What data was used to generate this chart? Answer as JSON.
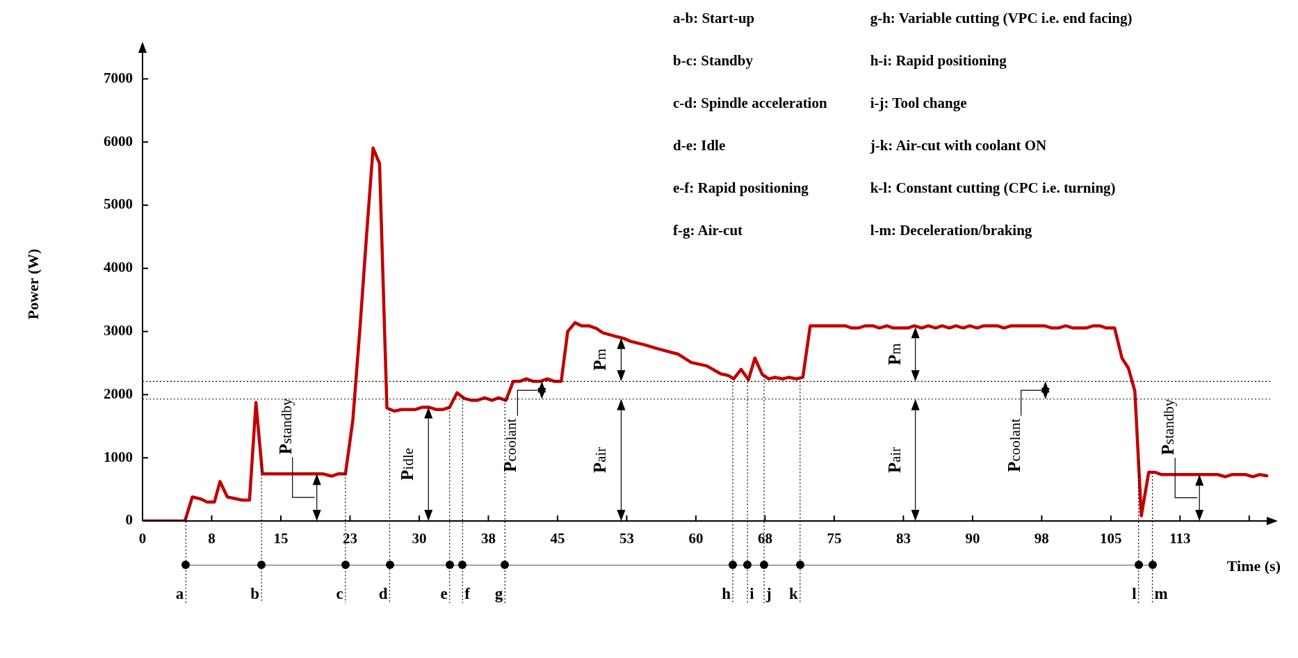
{
  "chart_data": {
    "type": "line",
    "xlabel": "Time (s)",
    "ylabel": "Power (W)",
    "color": "#c00000",
    "marker": "none",
    "line_style": "solid",
    "x": [
      0,
      4.6,
      5.4,
      6.3,
      7.0,
      7.8,
      8.4,
      9.2,
      10.8,
      11.6,
      12.3,
      13.0,
      19.6,
      20.5,
      21.2,
      22.0,
      22.8,
      23.6,
      24.3,
      25.0,
      25.7,
      26.5,
      27.3,
      28.1,
      29.6,
      30.3,
      31.1,
      31.8,
      32.6,
      33.3,
      34.1,
      34.9,
      35.7,
      36.3,
      37.1,
      37.9,
      38.6,
      39.4,
      40.2,
      40.9,
      41.6,
      42.4,
      43.1,
      43.9,
      44.7,
      45.4,
      46.1,
      46.9,
      47.6,
      48.4,
      49.2,
      49.9,
      51.5,
      52.1,
      52.9,
      54.4,
      55.8,
      58.1,
      59.5,
      61.2,
      62.7,
      63.5,
      64.1,
      64.9,
      65.7,
      66.4,
      67.2,
      67.9,
      68.6,
      69.4,
      70.1,
      70.9,
      71.6,
      72.4,
      76.2,
      76.9,
      77.6,
      78.4,
      79.2,
      79.9,
      80.7,
      81.4,
      83.0,
      83.7,
      84.5,
      85.2,
      86.0,
      86.7,
      87.5,
      88.2,
      89.0,
      89.7,
      90.5,
      91.2,
      92.7,
      93.4,
      94.2,
      97.8,
      98.6,
      99.3,
      100.1,
      100.9,
      102.3,
      103.1,
      103.8,
      104.5,
      105.4,
      106.2,
      106.9,
      107.6,
      108.3,
      109.1,
      109.8,
      110.5,
      116.6,
      117.4,
      118.1,
      119.6,
      120.4,
      121.1,
      121.9
    ],
    "values": [
      0,
      0,
      380,
      350,
      300,
      300,
      625,
      380,
      330,
      330,
      1875,
      745,
      745,
      710,
      745,
      745,
      1590,
      3095,
      4540,
      5905,
      5660,
      1790,
      1740,
      1765,
      1765,
      1800,
      1800,
      1765,
      1765,
      1800,
      2030,
      1940,
      1910,
      1910,
      1950,
      1910,
      1950,
      1910,
      2210,
      2210,
      2250,
      2210,
      2210,
      2250,
      2210,
      2210,
      3000,
      3140,
      3090,
      3090,
      3050,
      2980,
      2915,
      2895,
      2845,
      2790,
      2730,
      2640,
      2510,
      2455,
      2330,
      2305,
      2250,
      2400,
      2235,
      2580,
      2320,
      2250,
      2275,
      2250,
      2275,
      2250,
      2275,
      3090,
      3090,
      3055,
      3055,
      3090,
      3090,
      3055,
      3090,
      3055,
      3055,
      3090,
      3055,
      3090,
      3055,
      3090,
      3055,
      3090,
      3055,
      3090,
      3055,
      3090,
      3090,
      3055,
      3090,
      3090,
      3055,
      3055,
      3090,
      3055,
      3055,
      3090,
      3090,
      3055,
      3055,
      2580,
      2420,
      2055,
      80,
      770,
      770,
      735,
      735,
      700,
      735,
      735,
      700,
      735,
      715
    ],
    "xlim": [
      0,
      122.5
    ],
    "xticks": [
      0,
      {
        "value": 7.5,
        "label": "8"
      },
      15,
      {
        "value": 22.5,
        "label": "23"
      },
      30,
      {
        "value": 37.5,
        "label": "38"
      },
      45,
      {
        "value": 52.5,
        "label": "53"
      },
      60,
      {
        "value": 67.5,
        "label": "68"
      },
      75,
      {
        "value": 82.5,
        "label": "83"
      },
      90,
      {
        "value": 97.5,
        "label": "98"
      },
      105,
      {
        "value": 112.5,
        "label": "113"
      },
      {
        "value": 120,
        "label": null
      }
    ],
    "ylim": [
      0,
      7500
    ],
    "yticks": [
      0,
      1000,
      2000,
      3000,
      4000,
      5000,
      6000,
      7000
    ],
    "ref_lines": [
      {
        "axis": "x",
        "value": 4.7,
        "label": "a",
        "line_style": "dotted"
      },
      {
        "axis": "x",
        "value": 12.9,
        "label": "b",
        "line_style": "dotted"
      },
      {
        "axis": "x",
        "value": 22.0,
        "label": "c",
        "line_style": "dotted"
      },
      {
        "axis": "x",
        "value": 26.8,
        "label": "d",
        "line_style": "dotted"
      },
      {
        "axis": "x",
        "value": 33.3,
        "label": "e",
        "line_style": "dotted"
      },
      {
        "axis": "x",
        "value": 34.7,
        "label": "f",
        "line_style": "dotted"
      },
      {
        "axis": "x",
        "value": 39.3,
        "label": "g",
        "line_style": "dotted"
      },
      {
        "axis": "x",
        "value": 64.0,
        "label": "h",
        "line_style": "dotted"
      },
      {
        "axis": "x",
        "value": 65.6,
        "label": "i",
        "line_style": "dotted"
      },
      {
        "axis": "x",
        "value": 67.4,
        "label": "j",
        "line_style": "dotted"
      },
      {
        "axis": "x",
        "value": 71.3,
        "label": "k",
        "line_style": "dotted"
      },
      {
        "axis": "x",
        "value": 108.0,
        "label": "l",
        "line_style": "dotted"
      },
      {
        "axis": "x",
        "value": 109.5,
        "label": "m",
        "line_style": "dotted"
      },
      {
        "axis": "y",
        "value": 2210,
        "line_style": "dotted"
      },
      {
        "axis": "y",
        "value": 1930,
        "line_style": "dotted"
      }
    ],
    "annotations": [
      "a-b: Start-up",
      "b-c: Standby",
      "c-d: Spindle acceleration",
      "d-e: Idle",
      "e-f: Rapid positioning",
      "f-g: Air-cut",
      "g-h: Variable cutting (VPC i.e. end facing)",
      "h-i: Rapid positioning",
      "i-j: Tool change",
      "j-k: Air-cut with coolant ON",
      "k-l: Constant cutting (CPC i.e. turning)",
      "l-m: Deceleration/braking",
      {
        "text": "P$_{standby}$",
        "x": 18.9,
        "y": 745
      },
      {
        "text": "P$_{idle}$",
        "x": 31.0,
        "y": 1800
      },
      {
        "text": "P$_{coolant}$",
        "x": 43.3,
        "y": 2210
      },
      {
        "text": "P$_{m}$",
        "x": 51.9,
        "y": 2900
      },
      {
        "text": "P$_{air}$",
        "x": 51.9,
        "y": 1930
      },
      {
        "text": "P$_{m}$",
        "x": 83.8,
        "y": 3070
      },
      {
        "text": "P$_{air}$",
        "x": 83.8,
        "y": 1930
      },
      {
        "text": "P$_{coolant}$",
        "x": 97.9,
        "y": 2210
      },
      {
        "text": "P$_{standby}$",
        "x": 114.6,
        "y": 735
      }
    ]
  }
}
